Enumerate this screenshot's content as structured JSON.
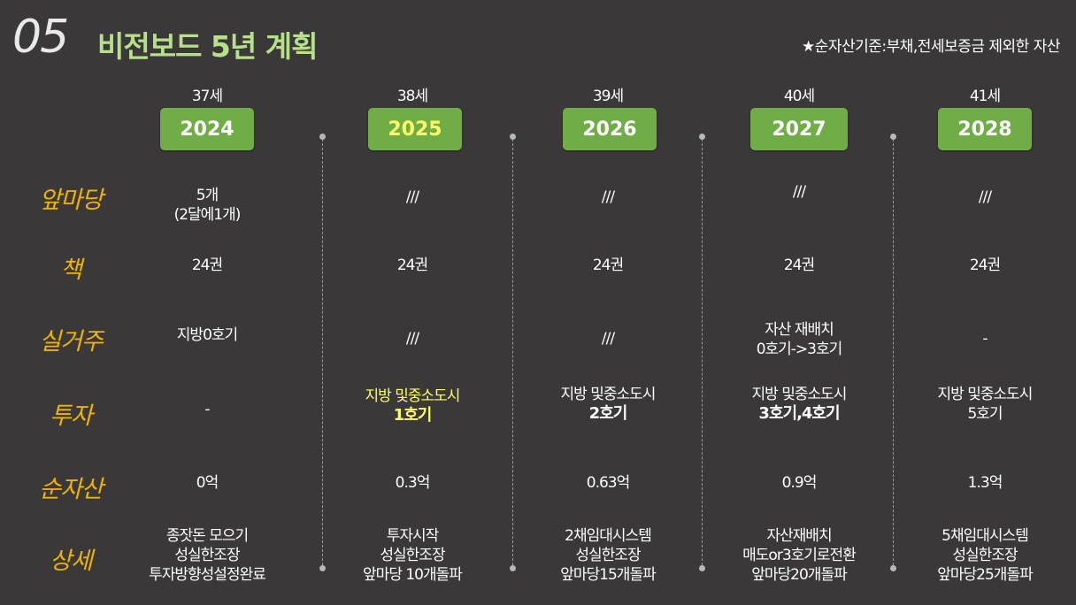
{
  "header": {
    "number": "05",
    "title": "비전보드 5년 계획",
    "note": "★순자산기준:부채,전세보증금 제외한 자산"
  },
  "columns": [
    {
      "age": "37세",
      "year": "2024"
    },
    {
      "age": "38세",
      "year": "2025"
    },
    {
      "age": "39세",
      "year": "2026"
    },
    {
      "age": "40세",
      "year": "2027"
    },
    {
      "age": "41세",
      "year": "2028"
    }
  ],
  "rows": {
    "labels": {
      "frontyard": "앞마당",
      "books": "책",
      "residence": "실거주",
      "investment": "투자",
      "net_assets": "순자산",
      "details": "상세"
    },
    "frontyard": [
      {
        "line1": "5개",
        "line2": "(2달에1개)"
      },
      {
        "line1": "///"
      },
      {
        "line1": "///"
      },
      {
        "line1": "///"
      },
      {
        "line1": "///"
      }
    ],
    "books": [
      "24권",
      "24권",
      "24권",
      "24권",
      "24권"
    ],
    "residence": [
      {
        "line1": "지방0호기"
      },
      {
        "line1": "///"
      },
      {
        "line1": "///"
      },
      {
        "line1": "자산 재배치",
        "line2": "0호기->3호기"
      },
      {
        "line1": "-"
      }
    ],
    "investment": [
      {
        "line1": "-"
      },
      {
        "line1": "지방 및중소도시",
        "line2": "1호기"
      },
      {
        "line1": "지방 및중소도시",
        "line2": "2호기"
      },
      {
        "line1": "지방 및중소도시",
        "line2": "3호기,4호기"
      },
      {
        "line1": "지방 및중소도시",
        "line2": "5호기"
      }
    ],
    "net_assets": [
      "0억",
      "0.3억",
      "0.63억",
      "0.9억",
      "1.3억"
    ],
    "details": [
      {
        "line1": "종잣돈 모으기",
        "line2": "성실한조장",
        "line3": "투자방향성설정완료"
      },
      {
        "line1": "투자시작",
        "line2": "성실한조장",
        "line3": "앞마당 10개돌파"
      },
      {
        "line1": "2채임대시스템",
        "line2": "성실한조장",
        "line3": "앞마당15개돌파"
      },
      {
        "line1": "자산재배치",
        "line2": "매도or3호기로전환",
        "line3": "앞마당20개돌파"
      },
      {
        "line1": "5채임대시스템",
        "line2": "성실한조장",
        "line3": "앞마당25개돌파"
      }
    ]
  },
  "colors": {
    "background": "#3a3838",
    "badge": "#70ad47",
    "title": "#b6e08a",
    "label": "#f0b400",
    "highlight": "#ffff66"
  }
}
